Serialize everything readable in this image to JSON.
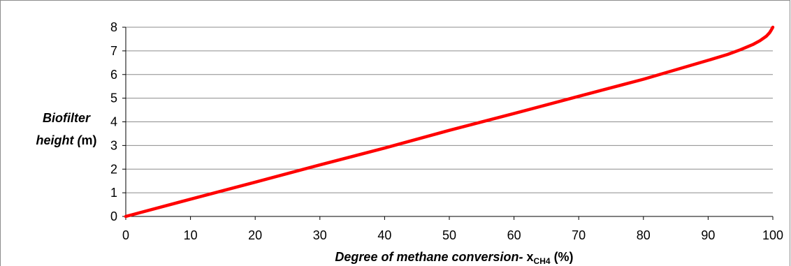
{
  "chart_data": {
    "type": "line",
    "xlabel_main": "Degree of methane conversion-",
    "xlabel_var": "x",
    "xlabel_sub": "CH4",
    "xlabel_unit": "(%)",
    "ylabel_line1": "Biofilter",
    "ylabel_line2_italic": "height",
    "ylabel_line2_open": " (",
    "ylabel_line2_unit": "m",
    "ylabel_line2_close": ")",
    "xlim": [
      0,
      100
    ],
    "ylim": [
      0,
      8
    ],
    "xticks": [
      "0",
      "10",
      "20",
      "30",
      "40",
      "50",
      "60",
      "70",
      "80",
      "90",
      "100"
    ],
    "yticks": [
      "0",
      "1",
      "2",
      "3",
      "4",
      "5",
      "6",
      "7",
      "8"
    ],
    "grid": "horizontal",
    "series": [
      {
        "color": "#ff0000",
        "x": [
          0,
          10,
          20,
          30,
          40,
          50,
          60,
          70,
          80,
          90,
          93,
          95,
          97,
          98,
          99,
          99.5,
          99.8,
          100
        ],
        "y": [
          0,
          0.73,
          1.45,
          2.18,
          2.89,
          3.64,
          4.35,
          5.08,
          5.8,
          6.6,
          6.85,
          7.05,
          7.28,
          7.43,
          7.62,
          7.77,
          7.9,
          8.0
        ]
      }
    ]
  }
}
